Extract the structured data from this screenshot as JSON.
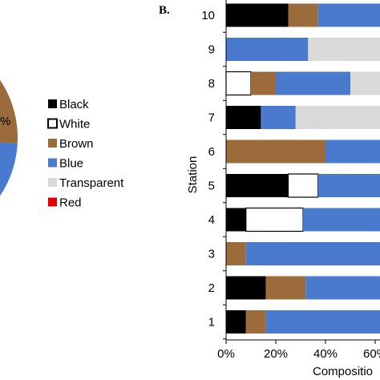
{
  "chart_data": [
    {
      "type": "pie",
      "panel": "A",
      "visible_slice_labels": [
        "%"
      ],
      "legend": [
        {
          "name": "Black",
          "color": "#000000"
        },
        {
          "name": "White",
          "color": "#ffffff"
        },
        {
          "name": "Brown",
          "color": "#9b6b3b"
        },
        {
          "name": "Blue",
          "color": "#4a7acd"
        },
        {
          "name": "Transparent",
          "color": "#d9d9d9"
        },
        {
          "name": "Red",
          "color": "#e00000"
        }
      ]
    },
    {
      "type": "bar",
      "orientation": "horizontal",
      "stacked": true,
      "panel_label": "B.",
      "ylabel": "Station",
      "xlabel": "Compositio",
      "categories": [
        "1",
        "2",
        "3",
        "4",
        "5",
        "6",
        "7",
        "8",
        "9",
        "10"
      ],
      "x_ticks": [
        "0%",
        "20%",
        "40%",
        "60%"
      ],
      "xlim": [
        0,
        100
      ],
      "series": [
        {
          "name": "Black",
          "color": "#000000",
          "values": [
            8,
            16,
            0,
            8,
            25,
            0,
            14,
            0,
            0,
            25
          ]
        },
        {
          "name": "White",
          "color": "#ffffff",
          "values": [
            0,
            0,
            0,
            23,
            12,
            0,
            0,
            10,
            0,
            0
          ]
        },
        {
          "name": "Brown",
          "color": "#9b6b3b",
          "values": [
            8,
            16,
            8,
            0,
            0,
            40,
            0,
            10,
            0,
            12
          ]
        },
        {
          "name": "Blue",
          "color": "#4a7acd",
          "values": [
            84,
            68,
            92,
            69,
            63,
            60,
            14,
            30,
            33,
            63
          ]
        },
        {
          "name": "Transparent",
          "color": "#d9d9d9",
          "values": [
            0,
            0,
            0,
            0,
            0,
            0,
            72,
            50,
            67,
            0
          ]
        }
      ]
    }
  ]
}
